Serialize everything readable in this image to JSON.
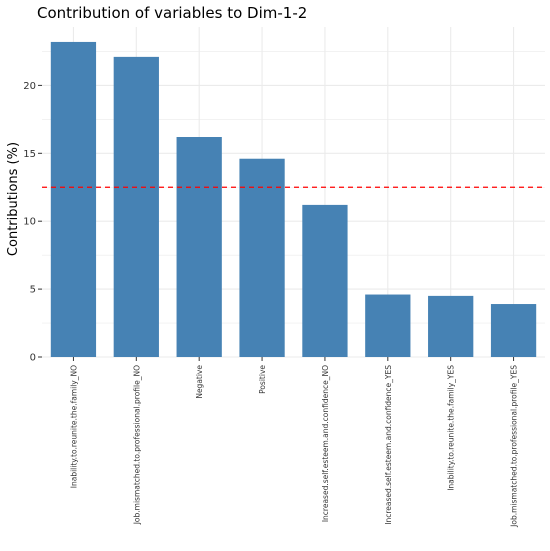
{
  "chart_data": {
    "type": "bar",
    "title": "Contribution of variables to Dim-1-2",
    "xlabel": "",
    "ylabel": "Contributions (%)",
    "categories": [
      "Inability.to.reunite.the.family_NO",
      "Job.mismatched.to.professional.profile_NO",
      "Negative",
      "Positive",
      "Increased.self.esteem.and.confidence_NO",
      "Increased.self.esteem.and.confidence_YES",
      "Inability.to.reunite.the.family_YES",
      "Job.mismatched.to.professional.profile_YES"
    ],
    "values": [
      23.2,
      22.1,
      16.2,
      14.6,
      11.2,
      4.6,
      4.5,
      3.9
    ],
    "reference_line": 12.5,
    "ylim": [
      0,
      25
    ],
    "yticks": [
      0,
      5,
      10,
      15,
      20
    ],
    "grid": true,
    "legend": "none",
    "colors": {
      "bar": "#4682b4",
      "reference_line": "#ff0000",
      "grid": "#ebebeb"
    }
  }
}
